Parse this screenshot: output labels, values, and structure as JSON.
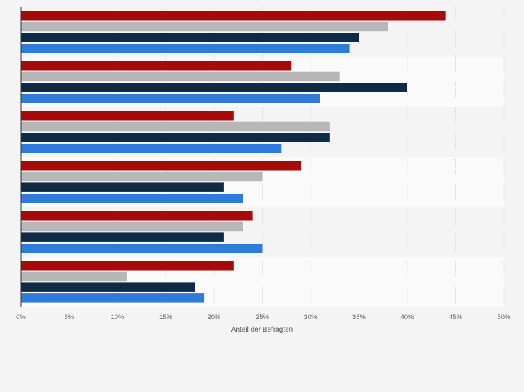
{
  "chart_data": {
    "type": "bar",
    "orientation": "horizontal",
    "categories": [
      "",
      "",
      "",
      "",
      "",
      ""
    ],
    "series": [
      {
        "color": "#a50b0b",
        "values": [
          44,
          28,
          22,
          29,
          24,
          22
        ]
      },
      {
        "color": "#b7b7b7",
        "values": [
          38,
          33,
          32,
          25,
          23,
          11
        ]
      },
      {
        "color": "#0f2a45",
        "values": [
          35,
          40,
          32,
          21,
          21,
          18
        ]
      },
      {
        "color": "#2e7bdc",
        "values": [
          34,
          31,
          27,
          23,
          25,
          19
        ]
      }
    ],
    "xlabel": "Anteil der Befragten",
    "xlim": [
      0,
      50
    ],
    "ticks": [
      "0%",
      "5%",
      "10%",
      "15%",
      "20%",
      "25%",
      "30%",
      "35%",
      "40%",
      "45%",
      "50%"
    ],
    "grid": true
  }
}
